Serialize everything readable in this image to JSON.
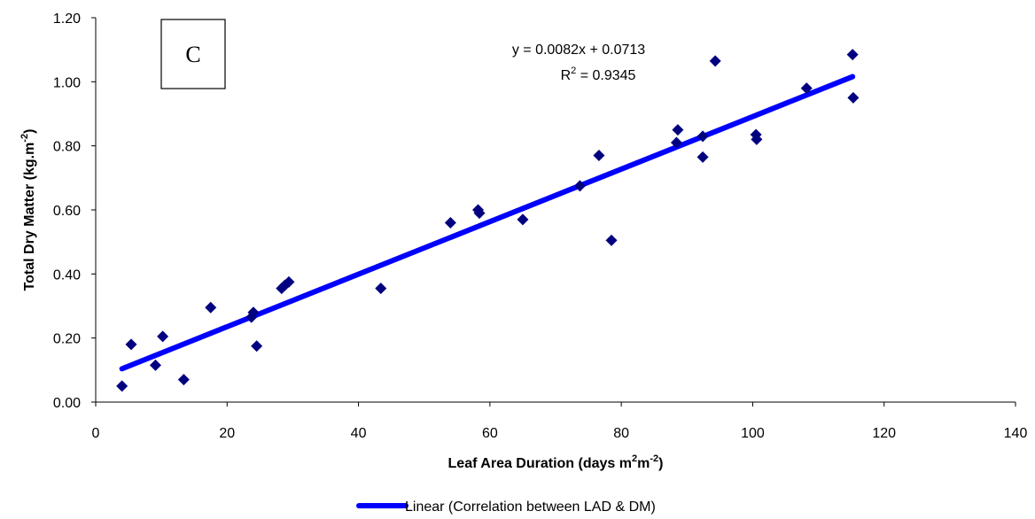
{
  "chart_data": {
    "type": "scatter",
    "panel_label": "C",
    "xlabel": {
      "main": "Leaf Area Duration (days m",
      "sup1": "2",
      "mid": "m",
      "sup2": "-2",
      "end": ")"
    },
    "ylabel": {
      "main": "Total Dry Matter (kg.m",
      "sup": "-2",
      "end": ")"
    },
    "xlim": [
      0,
      140
    ],
    "ylim": [
      0,
      1.2
    ],
    "x_ticks": [
      "0",
      "20",
      "40",
      "60",
      "80",
      "100",
      "120",
      "140"
    ],
    "y_ticks": [
      "0.00",
      "0.20",
      "0.40",
      "0.60",
      "0.80",
      "1.00",
      "1.20"
    ],
    "equation": "y = 0.0082x + 0.0713",
    "r2": {
      "prefix": "R",
      "sup": "2",
      "value": " = 0.9345"
    },
    "trendline": {
      "slope": 0.0082,
      "intercept": 0.0713,
      "x_range": [
        4,
        115.2
      ]
    },
    "legend": "Linear (Correlation between LAD & DM)",
    "colors": {
      "marker": "#000080",
      "trend": "#0000ff",
      "axis": "#000000"
    },
    "points": [
      [
        4,
        0.05
      ],
      [
        5.4,
        0.18
      ],
      [
        9.1,
        0.115
      ],
      [
        10.2,
        0.205
      ],
      [
        13.4,
        0.07
      ],
      [
        17.5,
        0.295
      ],
      [
        23.7,
        0.265
      ],
      [
        24,
        0.28
      ],
      [
        24.5,
        0.175
      ],
      [
        28.3,
        0.355
      ],
      [
        28.8,
        0.365
      ],
      [
        29.4,
        0.375
      ],
      [
        43.4,
        0.355
      ],
      [
        54,
        0.56
      ],
      [
        58.2,
        0.6
      ],
      [
        58.4,
        0.59
      ],
      [
        65,
        0.57
      ],
      [
        73.7,
        0.675
      ],
      [
        76.6,
        0.77
      ],
      [
        78.5,
        0.505
      ],
      [
        88.4,
        0.81
      ],
      [
        88.6,
        0.85
      ],
      [
        92.4,
        0.83
      ],
      [
        92.4,
        0.765
      ],
      [
        94.3,
        1.065
      ],
      [
        100.5,
        0.835
      ],
      [
        100.6,
        0.82
      ],
      [
        108.2,
        0.98
      ],
      [
        115.2,
        1.085
      ],
      [
        115.3,
        0.95
      ]
    ]
  }
}
